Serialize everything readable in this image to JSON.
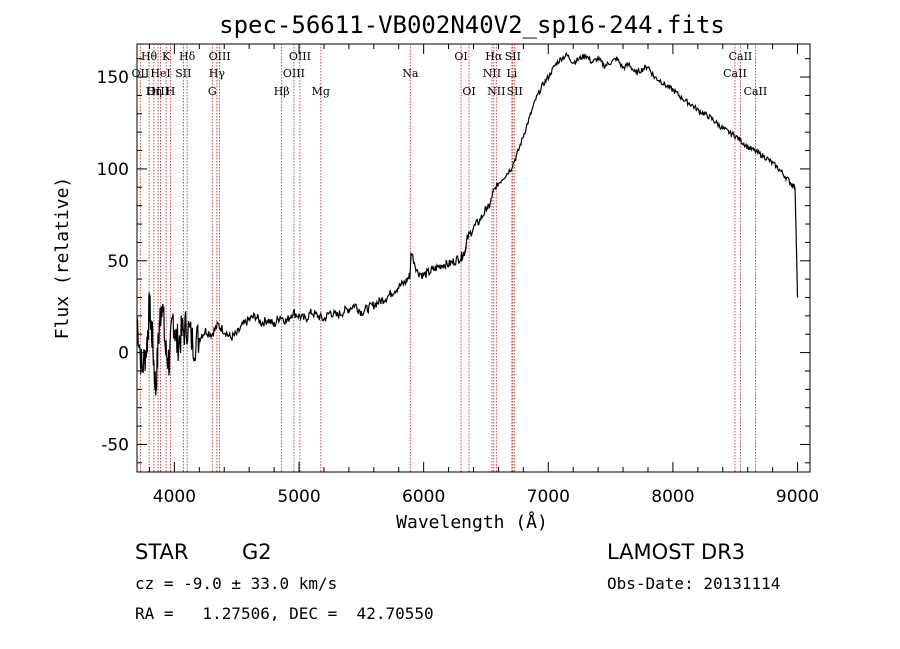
{
  "chart_data": {
    "type": "line",
    "title": "spec-56611-VB002N40V2_sp16-244.fits",
    "xlabel": "Wavelength (Å)",
    "ylabel": "Flux (relative)",
    "xlim": [
      3700,
      9100
    ],
    "ylim": [
      -65,
      168
    ],
    "xticks": [
      4000,
      5000,
      6000,
      7000,
      8000,
      9000
    ],
    "yticks": [
      -50,
      0,
      50,
      100,
      150
    ],
    "series": [
      {
        "name": "flux",
        "x": [
          3700,
          3740,
          3780,
          3800,
          3820,
          3850,
          3880,
          3900,
          3930,
          3960,
          3990,
          4020,
          4060,
          4100,
          4150,
          4200,
          4250,
          4300,
          4350,
          4400,
          4450,
          4500,
          4550,
          4600,
          4650,
          4700,
          4750,
          4800,
          4850,
          4900,
          4950,
          5000,
          5050,
          5100,
          5150,
          5200,
          5250,
          5300,
          5350,
          5400,
          5450,
          5500,
          5550,
          5600,
          5650,
          5700,
          5750,
          5800,
          5850,
          5890,
          5900,
          5950,
          6000,
          6050,
          6100,
          6150,
          6200,
          6250,
          6300,
          6330,
          6350,
          6400,
          6450,
          6500,
          6530,
          6560,
          6600,
          6650,
          6700,
          6750,
          6800,
          6850,
          6900,
          6950,
          7000,
          7050,
          7100,
          7150,
          7200,
          7250,
          7300,
          7350,
          7400,
          7450,
          7500,
          7550,
          7600,
          7650,
          7700,
          7750,
          7800,
          7850,
          7900,
          7950,
          8000,
          8050,
          8100,
          8150,
          8200,
          8250,
          8300,
          8350,
          8400,
          8450,
          8500,
          8550,
          8600,
          8650,
          8700,
          8750,
          8800,
          8850,
          8900,
          8950,
          8980,
          9000
        ],
        "y": [
          20,
          -10,
          5,
          25,
          10,
          -20,
          15,
          30,
          0,
          -5,
          20,
          5,
          10,
          15,
          5,
          8,
          12,
          10,
          15,
          12,
          8,
          10,
          15,
          18,
          20,
          16,
          18,
          15,
          20,
          17,
          22,
          20,
          18,
          22,
          20,
          18,
          22,
          20,
          22,
          24,
          26,
          22,
          24,
          26,
          28,
          30,
          33,
          36,
          38,
          42,
          55,
          44,
          42,
          44,
          46,
          48,
          48,
          50,
          52,
          55,
          62,
          68,
          72,
          78,
          80,
          88,
          92,
          96,
          100,
          108,
          118,
          128,
          138,
          145,
          150,
          156,
          160,
          162,
          158,
          160,
          162,
          158,
          160,
          156,
          158,
          160,
          155,
          157,
          152,
          154,
          156,
          150,
          148,
          145,
          143,
          140,
          137,
          135,
          132,
          130,
          128,
          125,
          122,
          120,
          118,
          115,
          112,
          110,
          108,
          106,
          103,
          100,
          96,
          92,
          90,
          30
        ]
      }
    ],
    "spectral_lines": [
      {
        "label": "Hθ",
        "x": 3797,
        "row": 0
      },
      {
        "label": "OII",
        "x": 3727,
        "row": 1
      },
      {
        "label": "OIII",
        "x": 3869,
        "row": 2
      },
      {
        "label": "K",
        "x": 3934,
        "row": 0
      },
      {
        "label": "HeI",
        "x": 3889,
        "row": 1
      },
      {
        "label": "Hη",
        "x": 3835,
        "row": 2
      },
      {
        "label": "H",
        "x": 3969,
        "row": 2
      },
      {
        "label": "SII",
        "x": 4072,
        "row": 1
      },
      {
        "label": "Hδ",
        "x": 4102,
        "row": 0
      },
      {
        "label": "OIII",
        "x": 4363,
        "row": 0
      },
      {
        "label": "Hγ",
        "x": 4341,
        "row": 1
      },
      {
        "label": "G",
        "x": 4304,
        "row": 2
      },
      {
        "label": "OIII",
        "x": 5007,
        "row": 0
      },
      {
        "label": "OIII",
        "x": 4959,
        "row": 1
      },
      {
        "label": "Hβ",
        "x": 4861,
        "row": 2
      },
      {
        "label": "Mg",
        "x": 5175,
        "row": 2
      },
      {
        "label": "Na",
        "x": 5893,
        "row": 1
      },
      {
        "label": "OI",
        "x": 6300,
        "row": 0
      },
      {
        "label": "OI",
        "x": 6364,
        "row": 2
      },
      {
        "label": "Hα",
        "x": 6563,
        "row": 0
      },
      {
        "label": "NII",
        "x": 6548,
        "row": 1
      },
      {
        "label": "NII",
        "x": 6583,
        "row": 2
      },
      {
        "label": "SII",
        "x": 6716,
        "row": 0
      },
      {
        "label": "Li",
        "x": 6708,
        "row": 1
      },
      {
        "label": "SII",
        "x": 6731,
        "row": 2
      },
      {
        "label": "CaII",
        "x": 8542,
        "row": 0
      },
      {
        "label": "CaII",
        "x": 8498,
        "row": 1
      },
      {
        "label": "CaII",
        "x": 8662,
        "row": 2
      }
    ],
    "colors": {
      "spectrum": "#000000",
      "line_marker": "#b22222"
    }
  },
  "info": {
    "object_class": "STAR",
    "subclass": "G2",
    "survey": "LAMOST DR3",
    "redshift": "cz = -9.0 ± 33.0 km/s",
    "obs_date": "Obs-Date: 20131114",
    "coords": "RA =   1.27506, DEC =  42.70550"
  }
}
